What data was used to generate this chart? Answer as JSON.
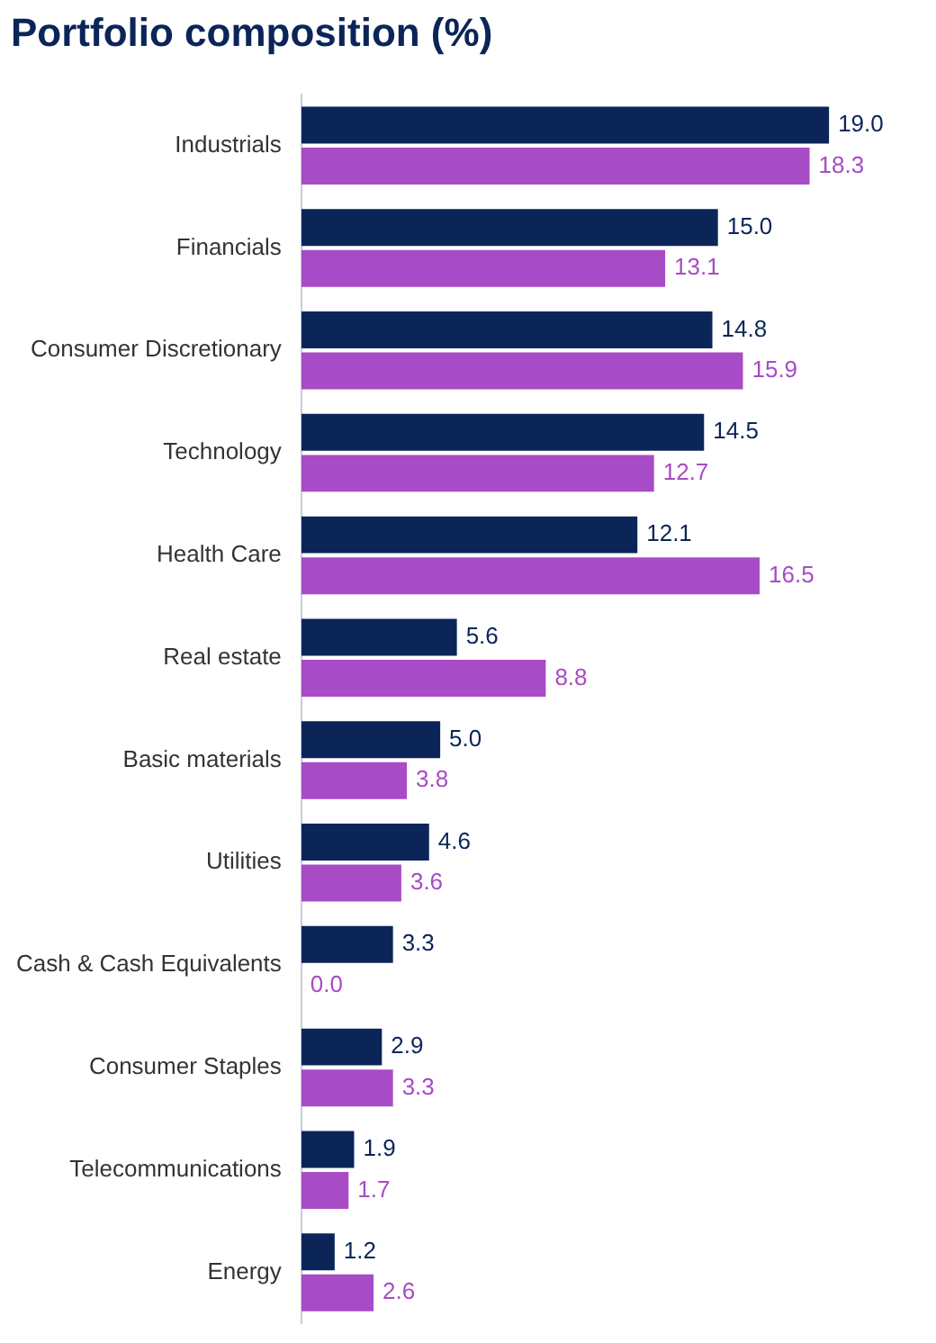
{
  "chart_data": {
    "type": "bar",
    "orientation": "horizontal",
    "title": "Portfolio composition (%)",
    "categories": [
      "Industrials",
      "Financials",
      "Consumer Discretionary",
      "Technology",
      "Health Care",
      "Real estate",
      "Basic materials",
      "Utilities",
      "Cash & Cash Equivalents",
      "Consumer Staples",
      "Telecommunications",
      "Energy"
    ],
    "series": [
      {
        "color": "#0b2559",
        "values": [
          19.0,
          15.0,
          14.8,
          14.5,
          12.1,
          5.6,
          5.0,
          4.6,
          3.3,
          2.9,
          1.9,
          1.2
        ],
        "value_labels": [
          "19.0",
          "15.0",
          "14.8",
          "14.5",
          "12.1",
          "5.6",
          "5.0",
          "4.6",
          "3.3",
          "2.9",
          "1.9",
          "1.2"
        ]
      },
      {
        "color": "#a84bc6",
        "values": [
          18.3,
          13.1,
          15.9,
          12.7,
          16.5,
          8.8,
          3.8,
          3.6,
          0.0,
          3.3,
          1.7,
          2.6
        ],
        "value_labels": [
          "18.3",
          "13.1",
          "15.9",
          "12.7",
          "16.5",
          "8.8",
          "3.8",
          "3.6",
          "0.0",
          "3.3",
          "1.7",
          "2.6"
        ]
      }
    ],
    "grid": false,
    "legend": false
  }
}
